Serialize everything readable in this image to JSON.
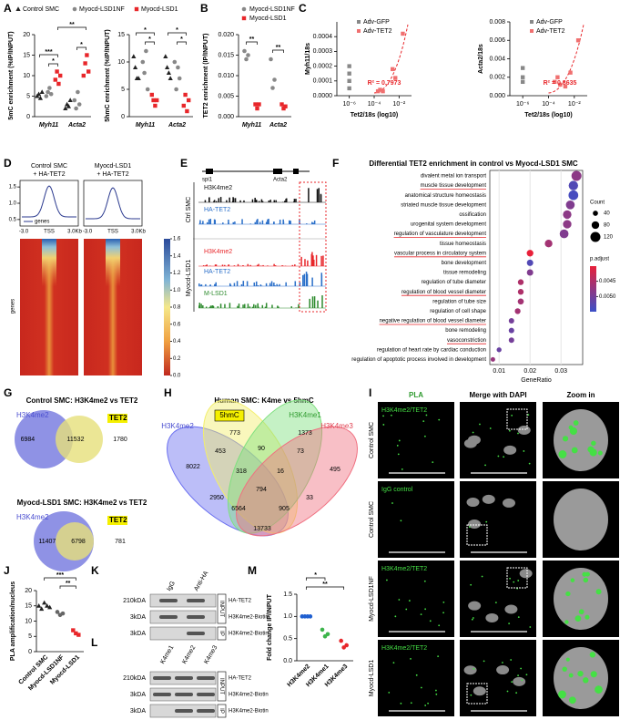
{
  "panel_labels": [
    "A",
    "B",
    "C",
    "D",
    "E",
    "F",
    "G",
    "H",
    "I",
    "J",
    "K",
    "L",
    "M"
  ],
  "A": {
    "legend": [
      "Control SMC",
      "Myocd-LSD1NF",
      "Myocd-LSD1"
    ],
    "charts": [
      {
        "ylabel": "5mC enrichment (%IP/INPUT)",
        "ylim": [
          0,
          20
        ],
        "yticks": [
          0,
          5,
          10,
          15,
          20
        ],
        "categories": [
          "Myh11",
          "Acta2"
        ],
        "colors": [
          "#222222",
          "#888888",
          "#e8262a"
        ],
        "markers": [
          "triangle",
          "circle",
          "square"
        ],
        "points": [
          [
            [
              5,
              5.5,
              4.5,
              6
            ],
            [
              5,
              6,
              7,
              5.5
            ],
            [
              9,
              11,
              8,
              10
            ]
          ],
          [
            [
              2,
              3,
              2.5,
              4
            ],
            [
              4,
              2,
              6,
              3
            ],
            [
              10,
              13,
              15,
              11
            ]
          ]
        ],
        "significance": [
          "***",
          "*",
          "**",
          "*"
        ]
      },
      {
        "ylabel": "5hmC enrichment (%IP/INPUT)",
        "ylim": [
          0,
          15
        ],
        "yticks": [
          0,
          5,
          10,
          15
        ],
        "categories": [
          "Myh11",
          "Acta2"
        ],
        "colors": [
          "#222222",
          "#888888",
          "#e8262a"
        ],
        "markers": [
          "triangle",
          "circle",
          "square"
        ],
        "points": [
          [
            [
              11,
              9,
              7,
              7
            ],
            [
              10,
              8,
              12,
              5
            ],
            [
              4,
              3,
              2,
              3
            ]
          ],
          [
            [
              11,
              9,
              8,
              7
            ],
            [
              10,
              5,
              9,
              7
            ],
            [
              2,
              4,
              1,
              3
            ]
          ]
        ],
        "significance": [
          "*",
          "*",
          "*",
          "*"
        ]
      }
    ]
  },
  "B": {
    "legend": [
      "Myocd-LSD1NF",
      "Myocd-LSD1"
    ],
    "chart": {
      "ylabel": "TET2 enrichment (IP/INPUT)",
      "ylim": [
        0,
        0.02
      ],
      "yticks": [
        {
          "value": 0,
          "label": "0.000"
        },
        {
          "value": 0.005,
          "label": "0.005"
        },
        {
          "value": 0.01,
          "label": "0.010"
        },
        {
          "value": 0.015,
          "label": "0.015"
        },
        {
          "value": 0.02,
          "label": "0.020"
        }
      ],
      "categories": [
        "Myh11",
        "Acta2"
      ],
      "colors": [
        "#888888",
        "#e8262a"
      ],
      "markers": [
        "circle",
        "square"
      ],
      "points": [
        [
          [
            0.016,
            0.014,
            0.015
          ],
          [
            0.003,
            0.002,
            0.003
          ]
        ],
        [
          [
            0.014,
            0.007,
            0.009
          ],
          [
            0.003,
            0.002,
            0.0025
          ]
        ]
      ],
      "significance": [
        "**",
        "**"
      ]
    }
  },
  "C": {
    "charts": [
      {
        "ylabel": "Myh11/18s",
        "xlabel": "Tet2/18s (log10)",
        "annotation": "R² = 0.7973",
        "xlim": [
          1e-07,
          0.1
        ],
        "xticks": [
          {
            "value": 1e-06,
            "label": "10⁻⁶"
          },
          {
            "value": 0.0001,
            "label": "10⁻⁴"
          },
          {
            "value": 0.01,
            "label": "10⁻²"
          }
        ],
        "ylim": [
          0,
          0.0005
        ],
        "yticks": [
          {
            "value": 0,
            "label": "0.0000"
          },
          0.0001,
          0.0002,
          0.0003,
          0.0004
        ],
        "series": [
          {
            "name": "Adv-GFP",
            "color": "#888888",
            "x": [
              1e-06,
              1e-06,
              1e-06,
              1e-06
            ],
            "y": [
              0.0002,
              0.00015,
              0.0001,
              5e-05
            ]
          },
          {
            "name": "Adv-TET2",
            "color": "#f07070",
            "x": [
              0.0002,
              0.0003,
              0.0005,
              0.003,
              0.005,
              0.02
            ],
            "y": [
              3e-05,
              4e-05,
              3e-05,
              0.00018,
              0.00012,
              0.00042
            ]
          }
        ]
      },
      {
        "ylabel": "Acta2/18s",
        "xlabel": "Tet2/18s (log10)",
        "annotation": "R² = 0.8635",
        "xlim": [
          1e-07,
          0.1
        ],
        "xticks": [
          {
            "value": 1e-06,
            "label": "10⁻⁶"
          },
          {
            "value": 0.0001,
            "label": "10⁻⁴"
          },
          {
            "value": 0.01,
            "label": "10⁻²"
          }
        ],
        "ylim": [
          0,
          0.008
        ],
        "yticks": [
          {
            "value": 0,
            "label": "0.000"
          },
          {
            "value": 0.002,
            "label": "0.002"
          },
          {
            "value": 0.004,
            "label": "0.004"
          },
          {
            "value": 0.006,
            "label": "0.006"
          },
          {
            "value": 0.008,
            "label": "0.008"
          }
        ],
        "series": [
          {
            "name": "Adv-GFP",
            "color": "#888888",
            "x": [
              1e-06,
              1e-06,
              1e-06
            ],
            "y": [
              0.003,
              0.002,
              0.0015
            ]
          },
          {
            "name": "Adv-TET2",
            "color": "#f07070",
            "x": [
              0.0003,
              0.0005,
              0.0008,
              0.002,
              0.005,
              0.02
            ],
            "y": [
              0.0015,
              0.002,
              0.0012,
              0.001,
              0.0025,
              0.006
            ]
          }
        ]
      }
    ]
  },
  "D": {
    "samples": [
      [
        "Control SMC",
        "+ HA-TET2"
      ],
      [
        "Myocd-LSD1",
        "+ HA-TET2"
      ]
    ],
    "profile_ylim": [
      0.3,
      1.7
    ],
    "profile_yticks": [
      {
        "value": 0.5,
        "label": "0.5"
      },
      {
        "value": 1,
        "label": "1.0"
      },
      1.5
    ],
    "profile_xticks": [
      "-3.0",
      "TSS",
      "3.0Kb"
    ],
    "legend": "genes",
    "heatmap_ylabel": "genes",
    "colorbar_lim": [
      0,
      1.6
    ],
    "colorbar_ticks": [
      {
        "value": 0,
        "label": "0.0"
      },
      0.2,
      0.4,
      0.6,
      0.8,
      {
        "value": 1,
        "label": "1.0"
      },
      1.2,
      1.4,
      1.6
    ]
  },
  "E": {
    "gene_labels": [
      "spi1",
      "Acta2"
    ],
    "group_labels": [
      "Ctrl SMC",
      "Myocd-LSD1"
    ],
    "tracks": [
      {
        "name": "H3K4me2",
        "color": "#111111"
      },
      {
        "name": "HA-TET2",
        "color": "#2a6fc9"
      },
      {
        "name": "H3K4me2",
        "color": "#e8262a"
      },
      {
        "name": "HA-TET2",
        "color": "#2a6fc9"
      },
      {
        "name": "M-LSD1",
        "color": "#2e8b2e"
      }
    ]
  },
  "F": {
    "title": "Differential TET2 enrichment in control vs Myocd-LSD1 SMC",
    "xlabel": "GeneRatio",
    "xlim": [
      0.007,
      0.037
    ],
    "xticks": [
      0.01,
      0.02,
      0.03
    ],
    "terms": [
      "divalent metal ion transport",
      "muscle tissue development",
      "anatomical structure homeostasis",
      "striated muscle tissue development",
      "ossification",
      "urogenital system development",
      "regulation of vasculature development",
      "tissue homeostasis",
      "vascular process in circulatory system",
      "bone development",
      "tissue remodeling",
      "regulation of tube diameter",
      "regulation of blood vessel diameter",
      "regulation of tube size",
      "regulation of cell shape",
      "negative regulation of blood vessel diameter",
      "bone remodeling",
      "vasoconstriction",
      "regulation of heart rate by cardiac conduction",
      "regulation of apoptotic process involved in development"
    ],
    "gene_ratio": [
      0.035,
      0.034,
      0.034,
      0.033,
      0.032,
      0.032,
      0.031,
      0.026,
      0.02,
      0.02,
      0.02,
      0.017,
      0.017,
      0.017,
      0.016,
      0.014,
      0.014,
      0.014,
      0.01,
      0.008
    ],
    "count": [
      120,
      110,
      115,
      100,
      95,
      95,
      100,
      80,
      65,
      60,
      60,
      50,
      50,
      55,
      50,
      45,
      45,
      45,
      35,
      30
    ],
    "p_adjust": [
      0.0048,
      0.0053,
      0.0054,
      0.0049,
      0.0048,
      0.0048,
      0.0049,
      0.0046,
      0.004,
      0.0053,
      0.0049,
      0.0045,
      0.0045,
      0.0046,
      0.0046,
      0.005,
      0.0051,
      0.005,
      0.0051,
      0.0047
    ],
    "underlined": [
      1,
      6,
      8,
      12,
      15,
      17
    ],
    "count_title": "Count",
    "count_ticks": [
      40,
      80,
      120
    ],
    "padj_title": "p.adjust",
    "padj_lim": [
      0.004,
      0.0055
    ],
    "padj_ticks": [
      0.0045,
      {
        "value": 0.005,
        "label": "0.0050"
      }
    ]
  },
  "G": {
    "venns": [
      {
        "title": "Control SMC: H3K4me2 vs TET2",
        "sets": [
          "H3K4me2",
          "TET2"
        ],
        "counts": [
          6984,
          11532,
          1780
        ]
      },
      {
        "title": "Myocd-LSD1 SMC: H3K4me2 vs TET2",
        "sets": [
          "H3K4me2",
          "TET2"
        ],
        "counts": [
          11407,
          6798,
          781
        ]
      }
    ]
  },
  "H": {
    "title": "Human SMC: K4me vs 5hmC",
    "sets": [
      "H3K4me2",
      "5hmC",
      "H3K4me1",
      "H3K4me3"
    ],
    "counts": [
      773,
      1373,
      8022,
      453,
      90,
      73,
      495,
      318,
      16,
      2950,
      794,
      6564,
      905,
      33,
      13733
    ]
  },
  "I": {
    "columns": [
      "PLA",
      "Merge with DAPI",
      "Zoom in"
    ],
    "rows": [
      {
        "label": "Control SMC",
        "stain": "H3K4me2/TET2"
      },
      {
        "label": "Control SMC",
        "stain": "IgG control"
      },
      {
        "label": "Myocd-LSD1NF",
        "stain": "H3K4me2/TET2"
      },
      {
        "label": "Myocd-LSD1",
        "stain": "H3K4me2/TET2"
      }
    ]
  },
  "J": {
    "chart": {
      "ylabel": "PLA amplification/nucleus",
      "ylim": [
        0,
        20
      ],
      "yticks": [
        0,
        5,
        10,
        15,
        20
      ],
      "categories": [
        "Control SMC",
        "Myocd-LSD1NF",
        "Myocd-LSD1"
      ],
      "colors": [
        "#222222",
        "#666666",
        "#e8262a"
      ],
      "markers": [
        "triangle",
        "circle",
        "square"
      ],
      "color_by": "category",
      "points": [
        [
          [
            15,
            14,
            16,
            15,
            14.5
          ]
        ],
        [
          [
            13,
            12,
            12.5
          ]
        ],
        [
          [
            7,
            6,
            5.5
          ]
        ]
      ],
      "significance": [
        "***",
        "**"
      ]
    }
  },
  "K": {
    "lanes": [
      "IgG",
      "Anti-HA"
    ],
    "markers": [
      "210kDA",
      "3kDA",
      "3kDA"
    ],
    "bands": [
      "HA-TET2",
      "H3K4me2-Biotin",
      "H3K4me2-Biotin"
    ],
    "fractions": [
      "INPUT",
      "IP"
    ]
  },
  "L": {
    "lanes": [
      "K4me1",
      "K4me2",
      "K4me3"
    ],
    "markers": [
      "210kDA",
      "3kDA",
      "3kDA"
    ],
    "bands": [
      "HA-TET2",
      "H3K4me2-Biotin",
      "H3K4me2-Biotin"
    ],
    "fractions": [
      "INPUT",
      "IP"
    ]
  },
  "M": {
    "chart": {
      "ylabel": "Fold change IP/INPUT",
      "ylim": [
        0,
        1.5
      ],
      "yticks": [
        {
          "value": 0,
          "label": "0.0"
        },
        0.5,
        {
          "value": 1,
          "label": "1.0"
        },
        1.5
      ],
      "categories": [
        "H3K4me2",
        "H3K4me1",
        "H3K4me3"
      ],
      "colors": [
        "#1f5fd0",
        "#3cb44b",
        "#e8262a"
      ],
      "markers": [
        "circle",
        "circle",
        "circle"
      ],
      "color_by": "category",
      "points": [
        [
          [
            1,
            1,
            1,
            1
          ]
        ],
        [
          [
            0.7,
            0.55,
            0.6
          ]
        ],
        [
          [
            0.45,
            0.3,
            0.35
          ]
        ]
      ],
      "significance": [
        "*",
        "**"
      ]
    }
  }
}
